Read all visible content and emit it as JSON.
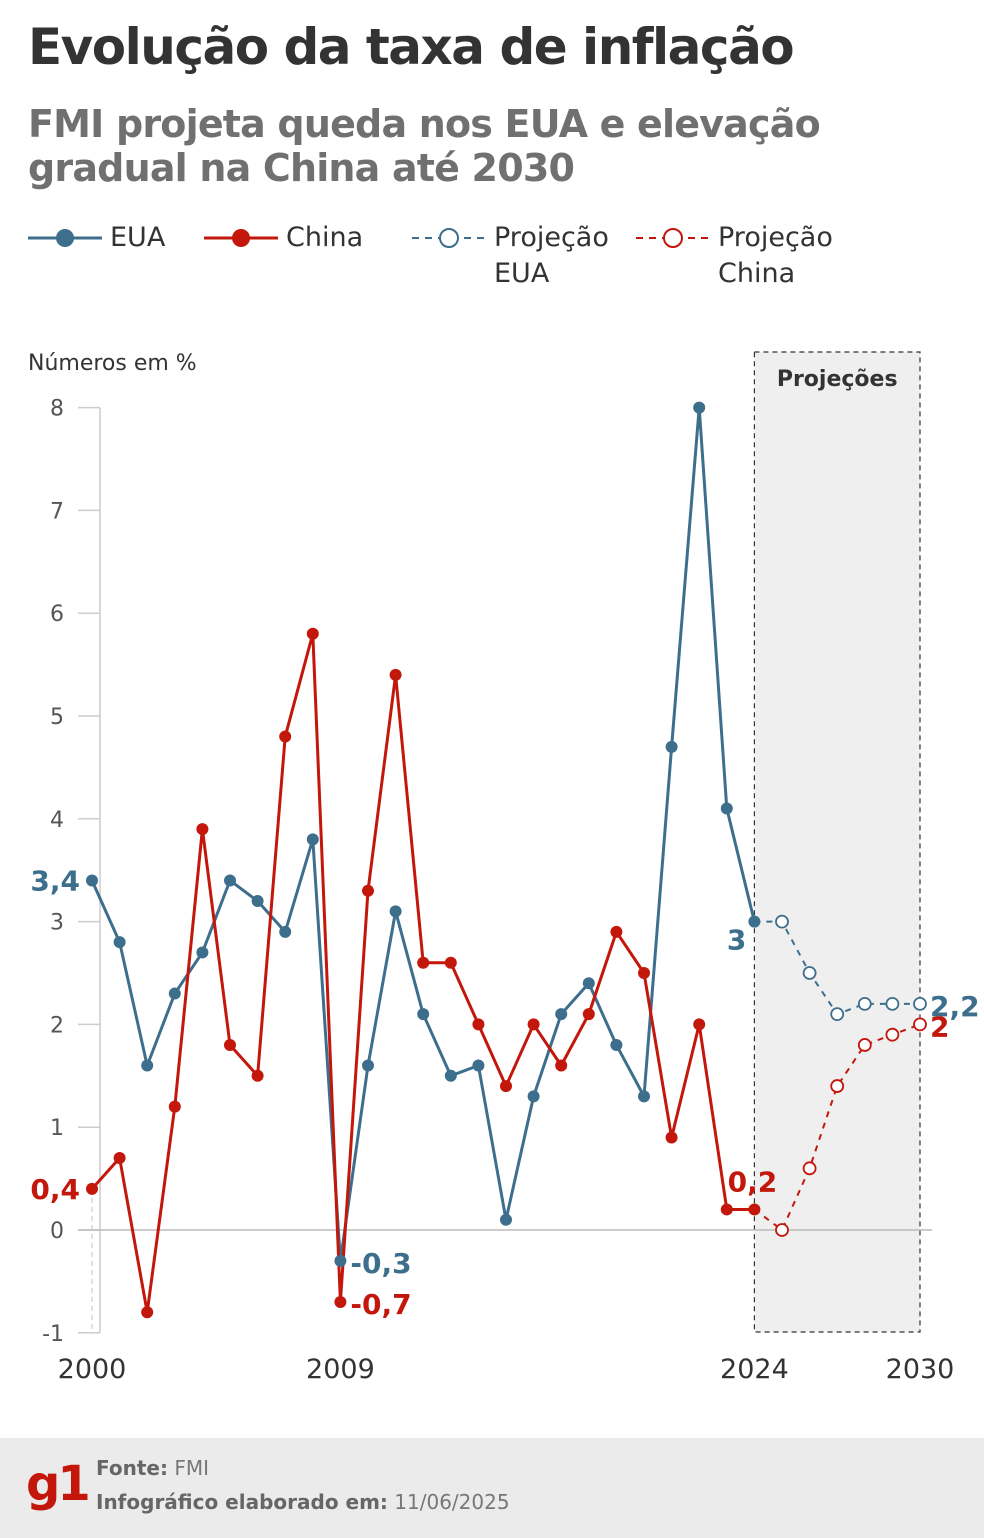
{
  "header": {
    "title": "Evolução da taxa de inflação",
    "subtitle": "FMI projeta queda nos EUA e elevação gradual na China até 2030"
  },
  "legend": {
    "eua": "EUA",
    "china": "China",
    "proj_eua": [
      "Projeção",
      "EUA"
    ],
    "proj_china": [
      "Projeção",
      "China"
    ]
  },
  "chart_data": {
    "type": "line",
    "unit_note": "Números em %",
    "projection_label": "Projeções",
    "projection_range": [
      2024,
      2030
    ],
    "x_tick_labels": [
      "2000",
      "2009",
      "2024",
      "2030"
    ],
    "x_ticks": [
      2000,
      2009,
      2024,
      2030
    ],
    "xlim": [
      2000,
      2030
    ],
    "ylim": [
      -1,
      8
    ],
    "y_ticks": [
      -1,
      0,
      1,
      2,
      3,
      4,
      5,
      6,
      7,
      8
    ],
    "series": [
      {
        "name": "EUA",
        "color": "#3d6f8d",
        "x": [
          2000,
          2001,
          2002,
          2003,
          2004,
          2005,
          2006,
          2007,
          2008,
          2009,
          2010,
          2011,
          2012,
          2013,
          2014,
          2015,
          2016,
          2017,
          2018,
          2019,
          2020,
          2021,
          2022,
          2023,
          2024
        ],
        "values": [
          3.4,
          2.8,
          1.6,
          2.3,
          2.7,
          3.4,
          3.2,
          2.9,
          3.8,
          -0.3,
          1.6,
          3.1,
          2.1,
          1.5,
          1.6,
          0.1,
          1.3,
          2.1,
          2.4,
          1.8,
          1.3,
          4.7,
          8.0,
          4.1,
          3.0
        ]
      },
      {
        "name": "China",
        "color": "#c4170c",
        "x": [
          2000,
          2001,
          2002,
          2003,
          2004,
          2005,
          2006,
          2007,
          2008,
          2009,
          2010,
          2011,
          2012,
          2013,
          2014,
          2015,
          2016,
          2017,
          2018,
          2019,
          2020,
          2021,
          2022,
          2023,
          2024
        ],
        "values": [
          0.4,
          0.7,
          -0.8,
          1.2,
          3.9,
          1.8,
          1.5,
          4.8,
          5.8,
          -0.7,
          3.3,
          5.4,
          2.6,
          2.6,
          2.0,
          1.4,
          2.0,
          1.6,
          2.1,
          2.9,
          2.5,
          0.9,
          2.0,
          0.2,
          0.2
        ]
      },
      {
        "name": "Projeção EUA",
        "color": "#3d6f8d",
        "dashed": true,
        "x": [
          2024,
          2025,
          2026,
          2027,
          2028,
          2029,
          2030
        ],
        "values": [
          3.0,
          3.0,
          2.5,
          2.1,
          2.2,
          2.2,
          2.2
        ]
      },
      {
        "name": "Projeção China",
        "color": "#c4170c",
        "dashed": true,
        "x": [
          2024,
          2025,
          2026,
          2027,
          2028,
          2029,
          2030
        ],
        "values": [
          0.2,
          0.0,
          0.6,
          1.4,
          1.8,
          1.9,
          2.0
        ]
      }
    ],
    "annotations": [
      {
        "text": "3,4",
        "series": "EUA",
        "x": 2000,
        "y": 3.4,
        "pos": "left"
      },
      {
        "text": "-0,3",
        "series": "EUA",
        "x": 2009,
        "y": -0.3,
        "pos": "right"
      },
      {
        "text": "3",
        "series": "EUA",
        "x": 2024,
        "y": 3.0,
        "pos": "below-left"
      },
      {
        "text": "2,2",
        "series": "EUA",
        "x": 2030,
        "y": 2.2,
        "pos": "right"
      },
      {
        "text": "0,4",
        "series": "China",
        "x": 2000,
        "y": 0.4,
        "pos": "left"
      },
      {
        "text": "-0,7",
        "series": "China",
        "x": 2009,
        "y": -0.7,
        "pos": "right"
      },
      {
        "text": "0,2",
        "series": "China",
        "x": 2024,
        "y": 0.2,
        "pos": "above"
      },
      {
        "text": "2",
        "series": "China",
        "x": 2030,
        "y": 2.0,
        "pos": "right"
      }
    ]
  },
  "footer": {
    "logo": "g1",
    "source_label": "Fonte:",
    "source_value": "FMI",
    "date_label": "Infográfico elaborado em:",
    "date_value": "11/06/2025"
  }
}
